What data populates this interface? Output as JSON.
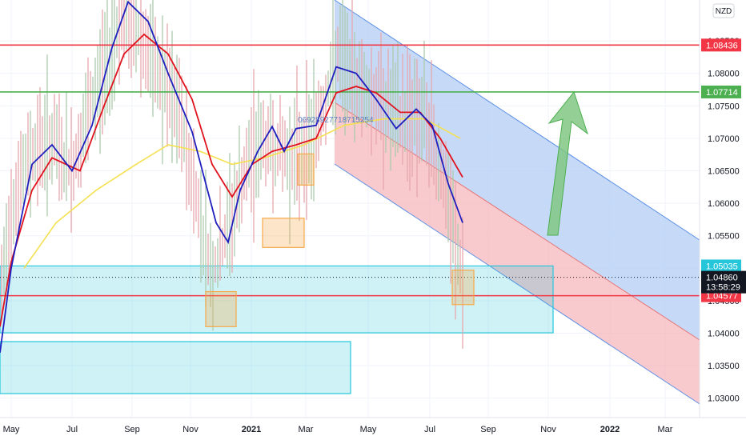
{
  "chart_data": {
    "type": "line",
    "currency_label": "NZD",
    "x_ticks": [
      {
        "label": "May",
        "bold": false
      },
      {
        "label": "Jul",
        "bold": false
      },
      {
        "label": "Sep",
        "bold": false
      },
      {
        "label": "Nov",
        "bold": false
      },
      {
        "label": "2021",
        "bold": true
      },
      {
        "label": "Mar",
        "bold": false
      },
      {
        "label": "May",
        "bold": false
      },
      {
        "label": "Jul",
        "bold": false
      },
      {
        "label": "Sep",
        "bold": false
      },
      {
        "label": "Nov",
        "bold": false
      },
      {
        "label": "2022",
        "bold": true
      },
      {
        "label": "Mar",
        "bold": false
      }
    ],
    "y_ticks": [
      "1.08500",
      "1.08000",
      "1.07500",
      "1.07000",
      "1.06500",
      "1.06000",
      "1.05500",
      "1.05000",
      "1.04500",
      "1.04000",
      "1.03500",
      "1.03000"
    ],
    "ylim": [
      1.027,
      1.0913
    ],
    "horizontal_levels": [
      {
        "value": 1.08436,
        "label": "1.08436",
        "color": "#f23645"
      },
      {
        "value": 1.07714,
        "label": "1.07714",
        "color": "#4caf50"
      },
      {
        "value": 1.04577,
        "label": "1.04577",
        "color": "#f23645"
      }
    ],
    "price_tags": [
      {
        "value": 1.05035,
        "label": "1.05035",
        "color": "#26c6da"
      },
      {
        "value": 1.0486,
        "label": "1.04860",
        "color": "#131722",
        "sublabel": "13:58:29"
      }
    ],
    "zones": [
      {
        "label": "",
        "y_top": 1.05035,
        "y_bottom": 1.04005,
        "color": "#26c6da"
      },
      {
        "label": "",
        "y_top": 1.0387,
        "y_bottom": 1.0307,
        "color": "#26c6da"
      }
    ],
    "annotation_text": "06928927718715254",
    "series": [
      {
        "name": "",
        "color": "#1f1fbf"
      },
      {
        "name": "",
        "color": "#e0131e"
      },
      {
        "name": "",
        "color": "#f5e050"
      }
    ],
    "colors": {
      "candle": "#aec9ad",
      "candle_down": "#e6a8ad",
      "channel_upper": "#b3cdf5",
      "channel_lower": "#f5b8bd",
      "arrow": "#81c784",
      "marker_box": "#f5a94a"
    }
  }
}
